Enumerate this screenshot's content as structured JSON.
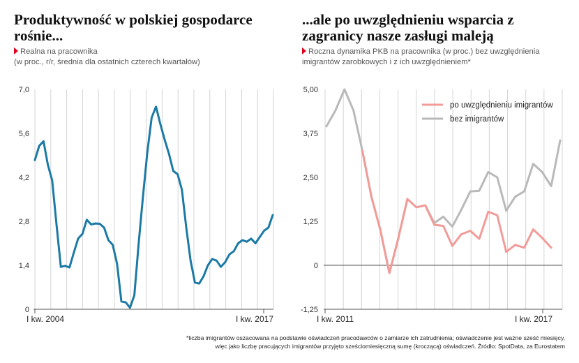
{
  "left": {
    "title": "Produktywność w polskiej gospodarce rośnie...",
    "subtitle_line1": "Realna na pracownika",
    "subtitle_line2": "(w proc., r/r, średnia dla ostatnich czterech kwartałów)"
  },
  "right": {
    "title": "...ale po uwzględnieniu wsparcia z zagranicy nasze zasługi maleją",
    "subtitle_line1": "Roczna dynamika PKB na pracownika (w proc.) bez uwzględnienia",
    "subtitle_line2": "imigrantów zarobkowych i z ich uwzględnieniem*"
  },
  "footnote": {
    "line1": "*liczba imigrantów oszacowana na podstawie oświadczeń pracodawców o zamiarze ich zatrudnienia; oświadczenie jest ważne sześć miesięcy,",
    "line2": "więc jako liczbę pracujących imigrantów przyjęto sześciomiesięczną sumę (kroczącą) oświadczeń. Źródło: SpotData, za Eurostatem"
  },
  "colors": {
    "left_series": "#1b7aa5",
    "with_immigrants": "#f29b98",
    "without_immigrants": "#b9b9b9",
    "grid": "#d4d4d4"
  },
  "chart_data": [
    {
      "type": "line",
      "title": "Produktywność w polskiej gospodarce rośnie...",
      "ylim": [
        0,
        7.0
      ],
      "yticks": [
        "7,0",
        "5,6",
        "4,2",
        "2,8",
        "1,4",
        "0"
      ],
      "ytick_values": [
        7.0,
        5.6,
        4.2,
        2.8,
        1.4,
        0
      ],
      "xticks": [
        "I kw. 2004",
        "I kw. 2017"
      ],
      "grid": "vertical",
      "series": [
        {
          "values": [
            4.75,
            5.2,
            5.35,
            4.6,
            4.1,
            2.7,
            1.35,
            1.38,
            1.33,
            1.8,
            2.25,
            2.4,
            2.85,
            2.7,
            2.73,
            2.72,
            2.6,
            2.2,
            2.05,
            1.45,
            0.25,
            0.22,
            0.05,
            0.45,
            2.1,
            3.6,
            5.0,
            6.1,
            6.45,
            5.9,
            5.4,
            4.95,
            4.4,
            4.3,
            3.8,
            2.6,
            1.55,
            0.85,
            0.82,
            1.05,
            1.4,
            1.6,
            1.55,
            1.35,
            1.5,
            1.75,
            1.85,
            2.1,
            2.2,
            2.15,
            2.25,
            2.1,
            2.3,
            2.5,
            2.6,
            3.0
          ]
        }
      ]
    },
    {
      "type": "line",
      "title": "...ale po uwzględnieniu wsparcia z zagranicy nasze zasługi maleją",
      "ylim": [
        -1.25,
        5.0
      ],
      "yticks": [
        "5,00",
        "3,75",
        "2,50",
        "1,25",
        "0",
        "-1,25"
      ],
      "ytick_values": [
        5.0,
        3.75,
        2.5,
        1.25,
        0,
        -1.25
      ],
      "xticks": [
        "I kw. 2011",
        "I kw. 2017"
      ],
      "grid": "vertical",
      "legend": "top-right",
      "series": [
        {
          "name": "bez imigrantów",
          "start_index": 0,
          "values": [
            3.95,
            4.4,
            5.0,
            4.4,
            3.25,
            1.95,
            1.0,
            -0.22,
            0.78,
            1.88,
            1.65,
            1.7,
            1.2,
            1.38,
            1.1,
            1.58,
            2.1,
            2.12,
            2.65,
            2.5,
            1.55,
            1.95,
            2.1,
            2.88,
            2.65,
            2.25,
            3.55
          ]
        },
        {
          "name": "po uwzględnieniu imigrantów",
          "start_index": 4,
          "values": [
            3.25,
            1.95,
            1.0,
            -0.22,
            0.78,
            1.88,
            1.65,
            1.7,
            1.15,
            1.12,
            0.55,
            0.88,
            0.98,
            0.75,
            1.52,
            1.42,
            0.38,
            0.58,
            0.5,
            1.02,
            0.78,
            0.5
          ]
        }
      ]
    }
  ]
}
